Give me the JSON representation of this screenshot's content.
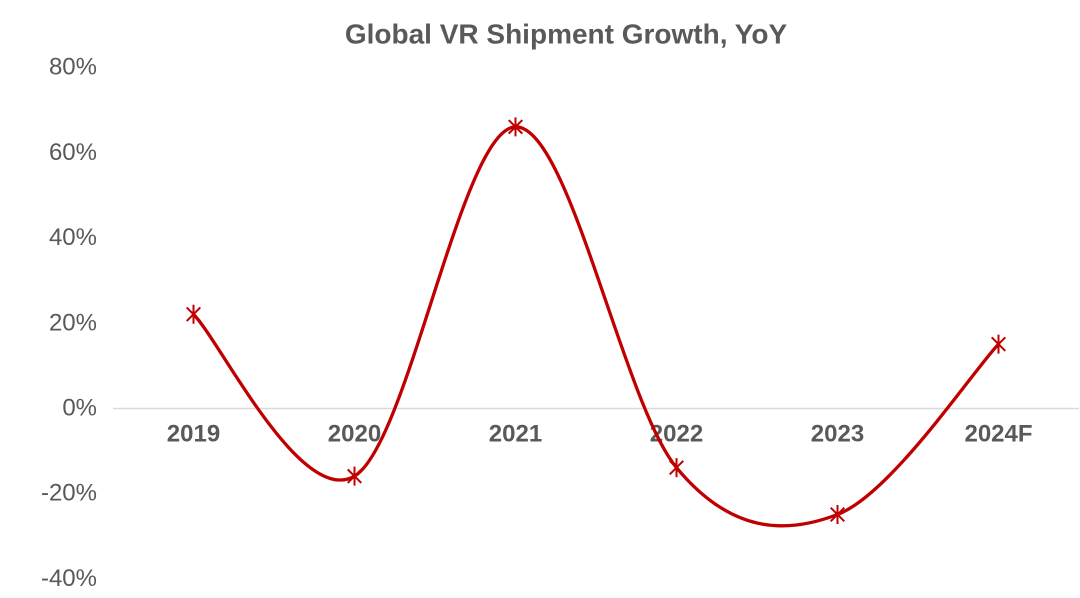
{
  "chart_data": {
    "type": "line",
    "title": "Global VR Shipment Growth, YoY",
    "categories": [
      "2019",
      "2020",
      "2021",
      "2022",
      "2023",
      "2024F"
    ],
    "series": [
      {
        "values": [
          22,
          -16,
          66,
          -14,
          -25,
          15
        ]
      }
    ],
    "unit": "%",
    "smooth": true,
    "marker": "asterisk",
    "legend_position": "none",
    "ylim": [
      -40,
      80
    ],
    "ytick_values": [
      80,
      60,
      40,
      20,
      0,
      -20,
      -40
    ],
    "ytick_labels": [
      "80%",
      "60%",
      "40%",
      "20%",
      "0%",
      "-20%",
      "-40%"
    ],
    "grid": "zero-axis-line-only",
    "colors": {
      "line": "#c00000",
      "marker": "#c00000",
      "axis_line": "#d9d9d9",
      "text": "#595959",
      "background": "#ffffff"
    }
  }
}
